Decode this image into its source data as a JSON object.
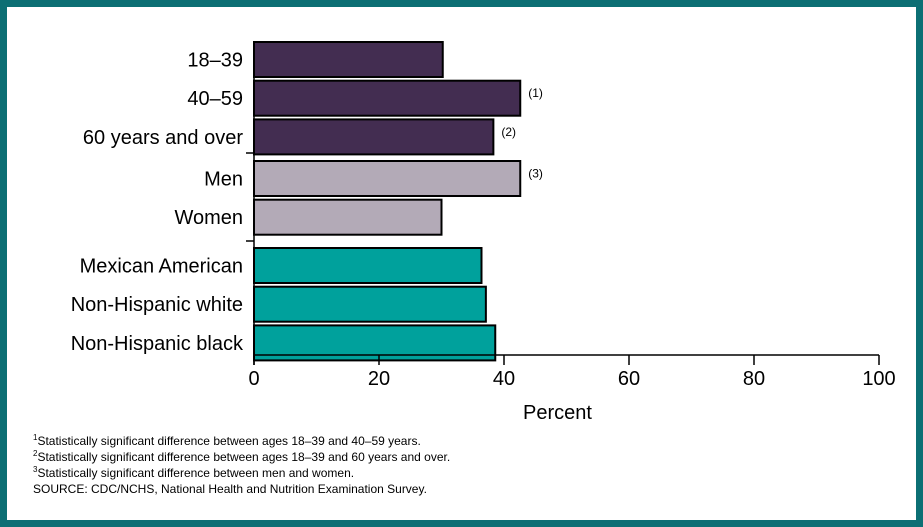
{
  "chart_data": {
    "type": "bar",
    "orientation": "horizontal",
    "xlabel": "Percent",
    "xlim": [
      0,
      100
    ],
    "xticks": [
      "0",
      "20",
      "40",
      "60",
      "80",
      "100"
    ],
    "groups": [
      {
        "color": "#432d51",
        "bars": [
          {
            "label": "18–39",
            "value": 30.2,
            "note": ""
          },
          {
            "label": "40–59",
            "value": 42.6,
            "note": "(1)"
          },
          {
            "label": "60 years and over",
            "value": 38.3,
            "note": "(2)"
          }
        ]
      },
      {
        "color": "#b3aab7",
        "bars": [
          {
            "label": "Men",
            "value": 42.6,
            "note": "(3)"
          },
          {
            "label": "Women",
            "value": 30.0,
            "note": ""
          }
        ]
      },
      {
        "color": "#00a19c",
        "bars": [
          {
            "label": "Mexican American",
            "value": 36.4,
            "note": ""
          },
          {
            "label": "Non-Hispanic white",
            "value": 37.1,
            "note": ""
          },
          {
            "label": "Non-Hispanic black",
            "value": 38.6,
            "note": ""
          }
        ]
      }
    ],
    "grid": false,
    "legend": "none"
  },
  "footnotes": [
    {
      "mark": "1",
      "text": "Statistically significant difference between ages 18–39 and 40–59 years."
    },
    {
      "mark": "2",
      "text": "Statistically significant difference between ages 18–39 and 60 years and over."
    },
    {
      "mark": "3",
      "text": "Statistically significant difference between men and women."
    },
    {
      "mark": "",
      "text": "SOURCE: CDC/NCHS, National Health and Nutrition Examination Survey."
    }
  ]
}
